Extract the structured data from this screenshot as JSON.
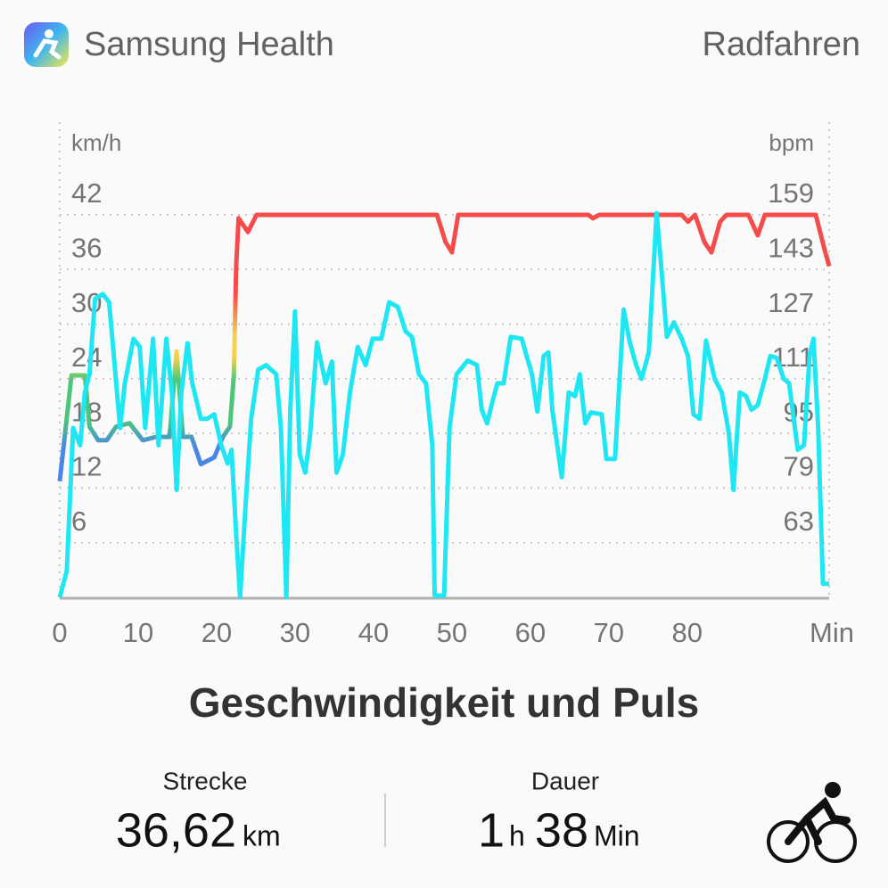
{
  "header": {
    "app": "Samsung Health",
    "activity": "Radfahren"
  },
  "chart_data": {
    "type": "line",
    "title": "Geschwindigkeit und Puls",
    "x_label": "Min",
    "y_label": "km/h",
    "y2_label": "bpm",
    "xlim": [
      0,
      98.1
    ],
    "xticks": [
      0,
      10,
      20,
      30,
      40,
      50,
      60,
      70,
      80
    ],
    "ylim": [
      0,
      42
    ],
    "yticks": [
      6,
      12,
      18,
      24,
      30,
      36,
      42
    ],
    "y2lim": [
      47,
      159
    ],
    "y2ticks": [
      63,
      79,
      95,
      111,
      127,
      143,
      159
    ],
    "grid": true,
    "series": [
      {
        "color": "#1ee6f2",
        "x": [
          0,
          0.9,
          1.7,
          2.6,
          3.2,
          3.8,
          4.5,
          5.5,
          6.3,
          6.9,
          7.7,
          8.3,
          9.4,
          10.2,
          10.9,
          11.9,
          12.6,
          13.6,
          14.3,
          14.9,
          15.5,
          16.3,
          16.9,
          18.0,
          18.8,
          19.7,
          20.6,
          21.4,
          21.9,
          22.5,
          23.0,
          23.6,
          24.4,
          25.3,
          26.3,
          27.6,
          28.2,
          28.9,
          29.4,
          30.0,
          30.6,
          31.3,
          31.9,
          32.8,
          33.9,
          34.7,
          35.3,
          36.1,
          37.0,
          38.0,
          39.0,
          39.9,
          41.0,
          42.0,
          43.1,
          44.1,
          44.9,
          45.8,
          46.7,
          47.5,
          47.8,
          49.0,
          49.7,
          50.6,
          52.0,
          53.2,
          53.8,
          54.5,
          55.2,
          55.8,
          56.6,
          57.5,
          58.9,
          60.2,
          60.9,
          61.7,
          62.3,
          62.8,
          64.0,
          64.9,
          65.7,
          66.3,
          67.0,
          67.7,
          69.1,
          69.7,
          70.8,
          71.9,
          72.7,
          73.5,
          74.2,
          75.1,
          76.1,
          76.7,
          77.4,
          78.3,
          79.3,
          80.1,
          80.8,
          81.6,
          82.4,
          83.5,
          84.4,
          85.3,
          85.9,
          86.7,
          87.5,
          88.2,
          89.0,
          89.9,
          90.6,
          91.4,
          92.3,
          93.0,
          94.1,
          94.9,
          95.6,
          96.1,
          96.7,
          97.3,
          98.1
        ],
        "values": [
          0,
          2.9,
          18.6,
          16.7,
          22.5,
          24.5,
          32.8,
          33.3,
          32.4,
          26.5,
          18.6,
          23.5,
          28.4,
          27.5,
          18.6,
          28.4,
          16.7,
          28.4,
          22.5,
          11.8,
          22.5,
          27.9,
          23.5,
          19.6,
          19.6,
          20.1,
          16.7,
          14.7,
          16.2,
          6.9,
          0,
          8.8,
          19.6,
          25.0,
          25.5,
          24.5,
          18.6,
          0,
          20.6,
          31.4,
          15.7,
          13.7,
          17.6,
          28.0,
          23.5,
          25.9,
          13.7,
          15.7,
          22.5,
          27.5,
          25.5,
          28.4,
          28.4,
          32.4,
          31.9,
          29.2,
          28.6,
          24.5,
          23.5,
          16.7,
          0.2,
          0.2,
          18.6,
          24.5,
          26.0,
          25.5,
          20.6,
          19.1,
          21.6,
          23.5,
          23.5,
          28.6,
          28.4,
          24.5,
          20.4,
          26.5,
          26.9,
          20.6,
          13.2,
          22.5,
          22.1,
          24.5,
          19.1,
          20.3,
          20.1,
          15.2,
          15.2,
          31.6,
          27.9,
          25.5,
          24.0,
          26.9,
          42.2,
          36.3,
          28.6,
          30.2,
          28.4,
          26.5,
          20.1,
          19.6,
          28.2,
          24.0,
          22.5,
          18.1,
          11.8,
          22.5,
          22.1,
          20.6,
          21.1,
          24.0,
          26.5,
          26.3,
          24.0,
          23.5,
          16.2,
          16.7,
          26.5,
          28.4,
          18.6,
          1.5,
          1.5
        ]
      },
      {
        "axis": "y2",
        "colors": [
          "#f44b4b",
          "#f5d24d",
          "#4cc77a",
          "#4a86e8"
        ],
        "x": [
          0,
          1.5,
          3.2,
          3.8,
          4.9,
          6.0,
          7.2,
          8.9,
          10.6,
          12.3,
          14.0,
          14.9,
          15.7,
          16.8,
          18.0,
          19.7,
          20.8,
          21.7,
          22.2,
          22.5,
          22.8,
          24.0,
          25.1,
          48.1,
          49.2,
          50.0,
          50.8,
          67.4,
          68.0,
          68.8,
          79.3,
          80.1,
          81.0,
          82.2,
          83.1,
          84.2,
          85.0,
          87.8,
          89.0,
          89.9,
          96.4,
          97.5,
          98.1
        ],
        "values": [
          81,
          112,
          112,
          97,
          93,
          93,
          97,
          98,
          93,
          94,
          94,
          119,
          94,
          94,
          86,
          88,
          94,
          97,
          112,
          144,
          158,
          154,
          159,
          159,
          151,
          148,
          159,
          159,
          158,
          159,
          159,
          157,
          159,
          151,
          148,
          157,
          159,
          159,
          153,
          159,
          159,
          149,
          144
        ]
      }
    ]
  },
  "stats": [
    {
      "label": "Strecke",
      "value": "36,62",
      "unit": "km"
    },
    {
      "label": "Dauer",
      "value": "1",
      "unit": "h",
      "value2": "38",
      "unit2": "Min"
    }
  ]
}
